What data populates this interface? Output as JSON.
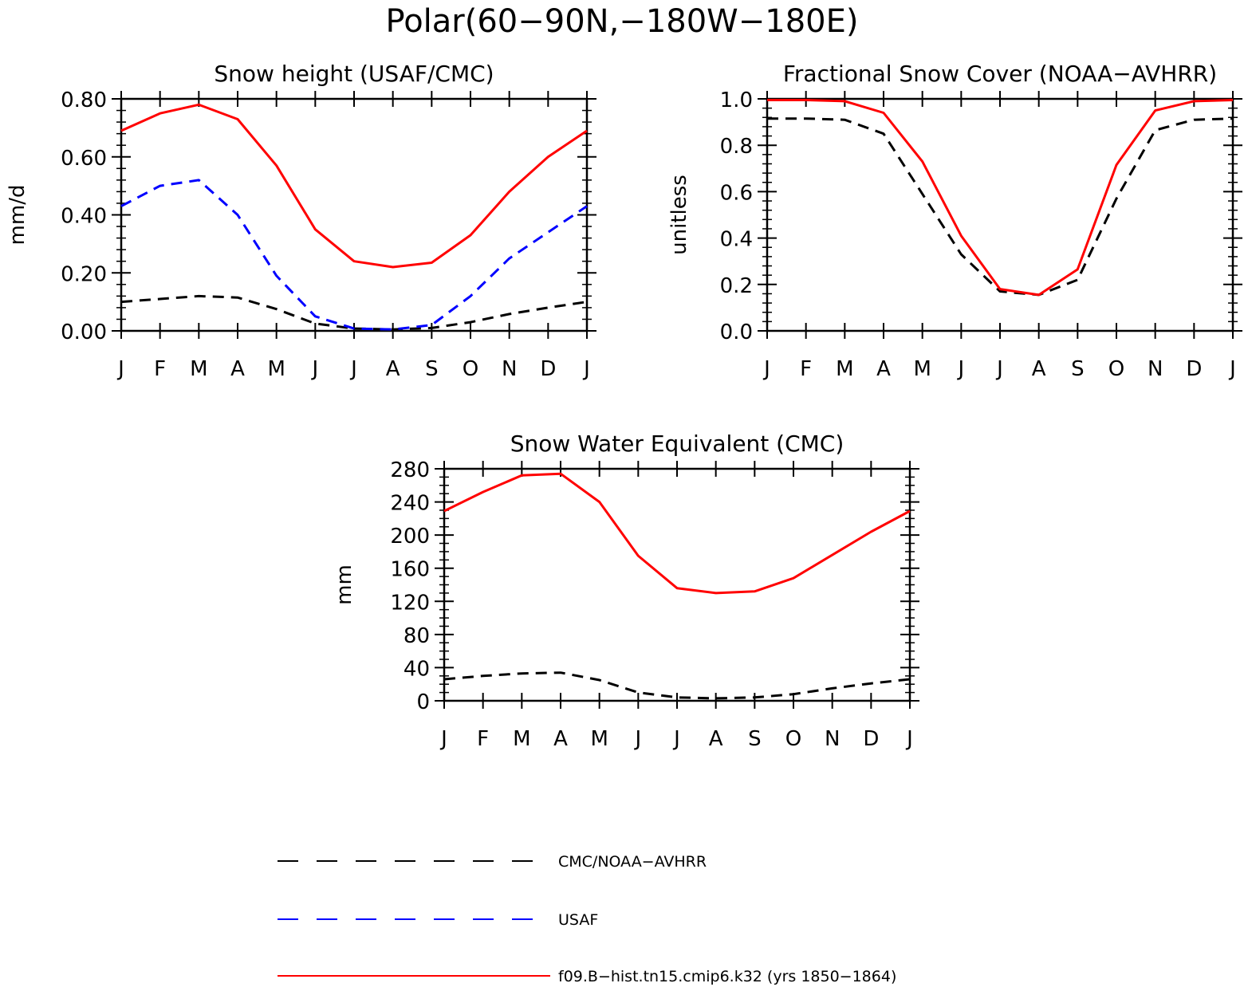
{
  "figure": {
    "title": "Polar(60−90N,−180W−180E)"
  },
  "colors": {
    "observed": "#000000",
    "usaf": "#0000ff",
    "model": "#ff0000"
  },
  "chart_data": [
    {
      "type": "line",
      "title": "Snow height (USAF/CMC)",
      "ylabel": "mm/d",
      "xlabel": "",
      "categories": [
        "J",
        "F",
        "M",
        "A",
        "M",
        "J",
        "J",
        "A",
        "S",
        "O",
        "N",
        "D",
        "J"
      ],
      "ylim": [
        0,
        0.8
      ],
      "yticks": [
        "0.00",
        "0.20",
        "0.40",
        "0.60",
        "0.80"
      ],
      "series": [
        {
          "name": "CMC/NOAA-AVHRR",
          "color": "#000000",
          "dash": "dashed",
          "values": [
            0.1,
            0.11,
            0.12,
            0.115,
            0.075,
            0.025,
            0.008,
            0.005,
            0.01,
            0.03,
            0.058,
            0.08,
            0.1
          ]
        },
        {
          "name": "USAF",
          "color": "#0000ff",
          "dash": "dashed",
          "values": [
            0.43,
            0.5,
            0.52,
            0.4,
            0.19,
            0.05,
            0.008,
            0.005,
            0.02,
            0.12,
            0.25,
            0.34,
            0.43
          ]
        },
        {
          "name": "f09.B−hist.tn15.cmip6.k32 (yrs 1850−1864)",
          "color": "#ff0000",
          "dash": "solid",
          "values": [
            0.69,
            0.75,
            0.78,
            0.73,
            0.57,
            0.35,
            0.24,
            0.22,
            0.235,
            0.33,
            0.48,
            0.6,
            0.69
          ]
        }
      ]
    },
    {
      "type": "line",
      "title": "Fractional Snow Cover (NOAA−AVHRR)",
      "ylabel": "unitless",
      "xlabel": "",
      "categories": [
        "J",
        "F",
        "M",
        "A",
        "M",
        "J",
        "J",
        "A",
        "S",
        "O",
        "N",
        "D",
        "J"
      ],
      "ylim": [
        0,
        1.0
      ],
      "yticks": [
        "0.0",
        "0.2",
        "0.4",
        "0.6",
        "0.8",
        "1.0"
      ],
      "series": [
        {
          "name": "CMC/NOAA-AVHRR",
          "color": "#000000",
          "dash": "dashed",
          "values": [
            0.915,
            0.915,
            0.91,
            0.85,
            0.59,
            0.33,
            0.17,
            0.155,
            0.22,
            0.57,
            0.865,
            0.91,
            0.915
          ]
        },
        {
          "name": "f09.B−hist.tn15.cmip6.k32 (yrs 1850−1864)",
          "color": "#ff0000",
          "dash": "solid",
          "values": [
            0.995,
            0.995,
            0.99,
            0.94,
            0.73,
            0.41,
            0.18,
            0.155,
            0.265,
            0.715,
            0.95,
            0.99,
            0.995
          ]
        }
      ]
    },
    {
      "type": "line",
      "title": "Snow Water Equivalent (CMC)",
      "ylabel": "mm",
      "xlabel": "",
      "categories": [
        "J",
        "F",
        "M",
        "A",
        "M",
        "J",
        "J",
        "A",
        "S",
        "O",
        "N",
        "D",
        "J"
      ],
      "ylim": [
        0,
        280
      ],
      "yticks": [
        "0",
        "40",
        "80",
        "120",
        "160",
        "200",
        "240",
        "280"
      ],
      "series": [
        {
          "name": "CMC/NOAA-AVHRR",
          "color": "#000000",
          "dash": "dashed",
          "values": [
            26,
            30,
            33,
            34,
            25,
            10,
            4,
            3,
            4,
            8,
            15,
            21,
            26
          ]
        },
        {
          "name": "f09.B−hist.tn15.cmip6.k32 (yrs 1850−1864)",
          "color": "#ff0000",
          "dash": "solid",
          "values": [
            229,
            252,
            272,
            274,
            240,
            175,
            136,
            130,
            132,
            148,
            176,
            204,
            229
          ]
        }
      ]
    }
  ],
  "legend": [
    {
      "label": "CMC/NOAA−AVHRR",
      "color": "#000000",
      "dash": "long-dashed"
    },
    {
      "label": "USAF",
      "color": "#0000ff",
      "dash": "long-dashed"
    },
    {
      "label": "f09.B−hist.tn15.cmip6.k32 (yrs 1850−1864)",
      "color": "#ff0000",
      "dash": "solid"
    }
  ]
}
